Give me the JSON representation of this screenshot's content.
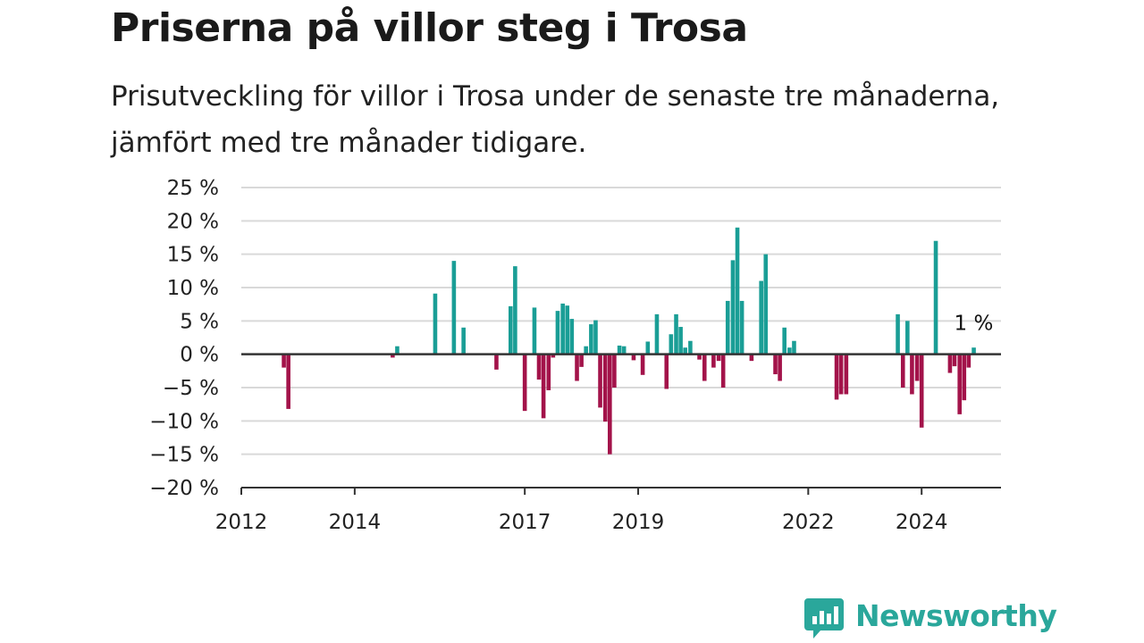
{
  "chart_data": {
    "type": "bar",
    "title": "Priserna på villor steg i Trosa",
    "subtitle": "Prisutveckling för villor i Trosa under de senaste tre månaderna, jämfört med tre månader tidigare.",
    "y_ticks": [
      "25 %",
      "20 %",
      "15 %",
      "10 %",
      "5 %",
      "0 %",
      "−5 %",
      "−10 %",
      "−15 %",
      "−20 %"
    ],
    "ylim": [
      -20,
      25
    ],
    "x_ticks": [
      "2012",
      "2014",
      "2017",
      "2019",
      "2022",
      "2024"
    ],
    "xlim": [
      2012,
      2025.4
    ],
    "grid": true,
    "legend": "none",
    "colors": {
      "positive": "#1a9e96",
      "negative": "#a3134a",
      "grid": "#d9d9d9",
      "axis": "#333333"
    },
    "end_label": "1 %",
    "points": [
      {
        "x": 2012.75,
        "y": -2
      },
      {
        "x": 2012.83,
        "y": -8.2
      },
      {
        "x": 2014.67,
        "y": -0.5
      },
      {
        "x": 2014.75,
        "y": 1.2
      },
      {
        "x": 2015.42,
        "y": 9.1
      },
      {
        "x": 2015.75,
        "y": 14
      },
      {
        "x": 2015.92,
        "y": 4
      },
      {
        "x": 2016.5,
        "y": -2.3
      },
      {
        "x": 2016.75,
        "y": 7.2
      },
      {
        "x": 2016.83,
        "y": 13.2
      },
      {
        "x": 2017.0,
        "y": -8.5
      },
      {
        "x": 2017.17,
        "y": 7
      },
      {
        "x": 2017.25,
        "y": -3.8
      },
      {
        "x": 2017.33,
        "y": -9.6
      },
      {
        "x": 2017.42,
        "y": -5.4
      },
      {
        "x": 2017.5,
        "y": -0.5
      },
      {
        "x": 2017.58,
        "y": 6.5
      },
      {
        "x": 2017.67,
        "y": 7.6
      },
      {
        "x": 2017.75,
        "y": 7.3
      },
      {
        "x": 2017.83,
        "y": 5.3
      },
      {
        "x": 2017.92,
        "y": -4
      },
      {
        "x": 2018.0,
        "y": -1.9
      },
      {
        "x": 2018.08,
        "y": 1.2
      },
      {
        "x": 2018.17,
        "y": 4.5
      },
      {
        "x": 2018.25,
        "y": 5.1
      },
      {
        "x": 2018.33,
        "y": -8
      },
      {
        "x": 2018.42,
        "y": -10.1
      },
      {
        "x": 2018.5,
        "y": -15
      },
      {
        "x": 2018.58,
        "y": -5
      },
      {
        "x": 2018.67,
        "y": 1.3
      },
      {
        "x": 2018.75,
        "y": 1.2
      },
      {
        "x": 2018.92,
        "y": -0.9
      },
      {
        "x": 2019.08,
        "y": -3.1
      },
      {
        "x": 2019.17,
        "y": 1.9
      },
      {
        "x": 2019.33,
        "y": 6
      },
      {
        "x": 2019.5,
        "y": -5.2
      },
      {
        "x": 2019.58,
        "y": 3
      },
      {
        "x": 2019.67,
        "y": 6
      },
      {
        "x": 2019.75,
        "y": 4.1
      },
      {
        "x": 2019.83,
        "y": 1
      },
      {
        "x": 2019.92,
        "y": 2
      },
      {
        "x": 2020.08,
        "y": -0.8
      },
      {
        "x": 2020.17,
        "y": -4
      },
      {
        "x": 2020.33,
        "y": -2
      },
      {
        "x": 2020.42,
        "y": -1
      },
      {
        "x": 2020.5,
        "y": -5
      },
      {
        "x": 2020.58,
        "y": 8
      },
      {
        "x": 2020.67,
        "y": 14.1
      },
      {
        "x": 2020.75,
        "y": 19
      },
      {
        "x": 2020.83,
        "y": 8
      },
      {
        "x": 2021.0,
        "y": -1
      },
      {
        "x": 2021.17,
        "y": 11
      },
      {
        "x": 2021.25,
        "y": 15
      },
      {
        "x": 2021.42,
        "y": -3
      },
      {
        "x": 2021.5,
        "y": -4
      },
      {
        "x": 2021.58,
        "y": 4
      },
      {
        "x": 2021.67,
        "y": 1
      },
      {
        "x": 2021.75,
        "y": 2
      },
      {
        "x": 2022.5,
        "y": -6.8
      },
      {
        "x": 2022.58,
        "y": -6
      },
      {
        "x": 2022.67,
        "y": -6
      },
      {
        "x": 2023.58,
        "y": 6
      },
      {
        "x": 2023.67,
        "y": -5
      },
      {
        "x": 2023.75,
        "y": 5
      },
      {
        "x": 2023.83,
        "y": -6
      },
      {
        "x": 2023.92,
        "y": -4
      },
      {
        "x": 2024.0,
        "y": -11
      },
      {
        "x": 2024.25,
        "y": 17
      },
      {
        "x": 2024.5,
        "y": -2.8
      },
      {
        "x": 2024.58,
        "y": -1.8
      },
      {
        "x": 2024.67,
        "y": -9
      },
      {
        "x": 2024.75,
        "y": -6.9
      },
      {
        "x": 2024.83,
        "y": -2
      },
      {
        "x": 2024.92,
        "y": 1
      }
    ]
  },
  "brand": {
    "name": "Newsworthy",
    "icon": "newsworthy-logo-icon"
  }
}
